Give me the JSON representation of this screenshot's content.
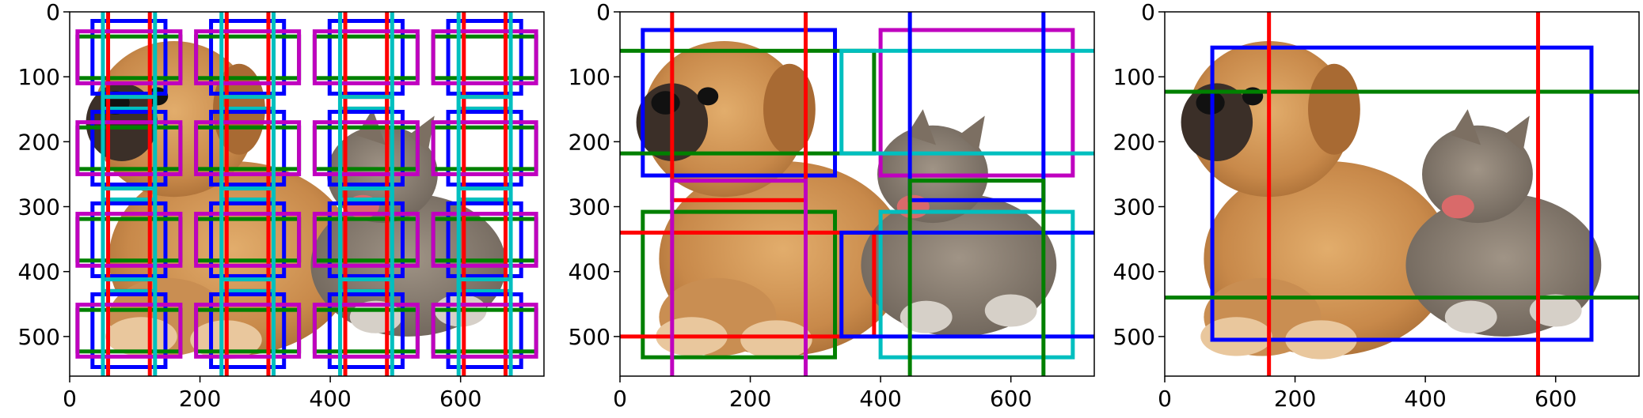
{
  "colors": {
    "blue": "#0000ff",
    "green": "#008000",
    "red": "#ff0000",
    "magenta": "#bf00bf",
    "cyan": "#00bfbf",
    "axis": "#000000"
  },
  "image": {
    "description_icon": "dog-and-cat-photo",
    "width": 728,
    "height": 561
  },
  "chart_data": [
    {
      "type": "scatter",
      "title": "",
      "xlabel": "",
      "ylabel": "",
      "xlim": [
        0,
        728
      ],
      "ylim": [
        561,
        0
      ],
      "xticks": [
        "0",
        "200",
        "400",
        "600"
      ],
      "xtick_values": [
        0,
        200,
        400,
        600
      ],
      "yticks": [
        "0",
        "100",
        "200",
        "300",
        "400",
        "500"
      ],
      "ytick_values": [
        0,
        100,
        200,
        300,
        400,
        500
      ],
      "anchor_grid": {
        "centers_x": [
          91,
          273,
          455,
          637
        ],
        "centers_y": [
          70,
          210,
          351,
          491
        ],
        "boxes": [
          {
            "color": "blue",
            "w": 112,
            "h": 112
          },
          {
            "color": "green",
            "w": 158,
            "h": 64
          },
          {
            "color": "red",
            "w": 64,
            "h": 158
          },
          {
            "color": "magenta",
            "w": 158,
            "h": 80
          },
          {
            "color": "cyan",
            "w": 80,
            "h": 158
          }
        ]
      }
    },
    {
      "type": "scatter",
      "title": "",
      "xlabel": "",
      "ylabel": "",
      "xlim": [
        0,
        728
      ],
      "ylim": [
        561,
        0
      ],
      "xticks": [
        "0",
        "200",
        "400",
        "600"
      ],
      "xtick_values": [
        0,
        200,
        400,
        600
      ],
      "yticks": [
        "0",
        "100",
        "200",
        "300",
        "400",
        "500"
      ],
      "ytick_values": [
        0,
        100,
        200,
        300,
        400,
        500
      ],
      "boxes": [
        {
          "color": "blue",
          "x0": 35,
          "y0": 28,
          "x1": 330,
          "y1": 252
        },
        {
          "color": "green",
          "x0": -5,
          "y0": 60,
          "x1": 390,
          "y1": 218
        },
        {
          "color": "red",
          "x0": 80,
          "y0": -5,
          "x1": 285,
          "y1": 290
        },
        {
          "color": "magenta",
          "x0": 400,
          "y0": 28,
          "x1": 695,
          "y1": 252
        },
        {
          "color": "cyan",
          "x0": 340,
          "y0": 60,
          "x1": 735,
          "y1": 218
        },
        {
          "color": "blue",
          "x0": 445,
          "y0": -5,
          "x1": 650,
          "y1": 290
        },
        {
          "color": "green",
          "x0": 35,
          "y0": 308,
          "x1": 330,
          "y1": 532
        },
        {
          "color": "red",
          "x0": -5,
          "y0": 340,
          "x1": 390,
          "y1": 500
        },
        {
          "color": "magenta",
          "x0": 80,
          "y0": 260,
          "x1": 285,
          "y1": 566
        },
        {
          "color": "cyan",
          "x0": 400,
          "y0": 308,
          "x1": 695,
          "y1": 532
        },
        {
          "color": "blue",
          "x0": 340,
          "y0": 340,
          "x1": 735,
          "y1": 500
        },
        {
          "color": "green",
          "x0": 445,
          "y0": 260,
          "x1": 650,
          "y1": 566
        }
      ]
    },
    {
      "type": "scatter",
      "title": "",
      "xlabel": "",
      "ylabel": "",
      "xlim": [
        0,
        728
      ],
      "ylim": [
        561,
        0
      ],
      "xticks": [
        "0",
        "200",
        "400",
        "600"
      ],
      "xtick_values": [
        0,
        200,
        400,
        600
      ],
      "yticks": [
        "0",
        "100",
        "200",
        "300",
        "400",
        "500"
      ],
      "ytick_values": [
        0,
        100,
        200,
        300,
        400,
        500
      ],
      "boxes": [
        {
          "color": "blue",
          "x0": 73,
          "y0": 55,
          "x1": 655,
          "y1": 505
        },
        {
          "color": "green",
          "x0": -5,
          "y0": 123,
          "x1": 735,
          "y1": 440
        },
        {
          "color": "red",
          "x0": 160,
          "y0": -5,
          "x1": 573,
          "y1": 566
        }
      ]
    }
  ]
}
